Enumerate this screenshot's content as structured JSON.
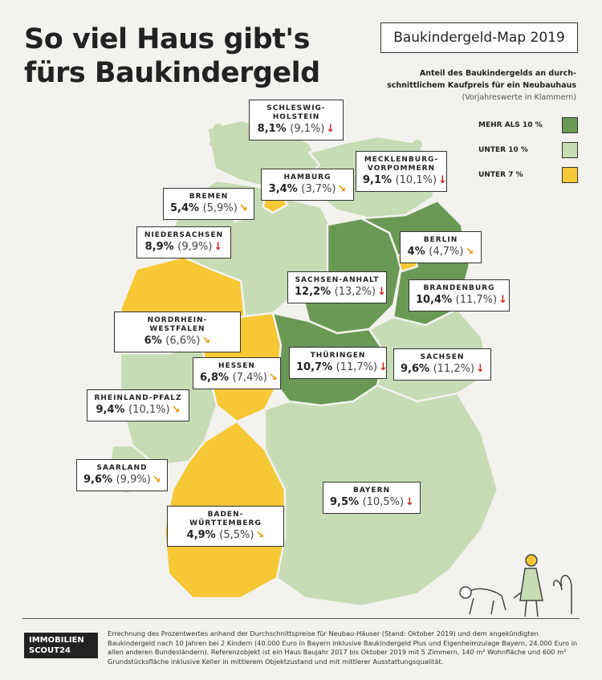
{
  "title": {
    "line1": "So viel Haus gibt's",
    "line2": "fürs Baukindergeld"
  },
  "tag": "Baukindergeld-Map 2019",
  "subtitle": {
    "line1": "Anteil des Baukindergelds an durch-",
    "line2": "schnittlichem Kaufpreis für ein Neubauhaus"
  },
  "note": "(Vorjahreswerte in Klammern)",
  "colors": {
    "dark_green": "#6a9955",
    "light_green": "#c7dcb4",
    "yellow": "#f6c835",
    "background": "#f3f2ef"
  },
  "legend": [
    {
      "label": "MEHR ALS 10 %",
      "color": "#6a9955"
    },
    {
      "label": "UNTER 10 %",
      "color": "#c7dcb4"
    },
    {
      "label": "UNTER 7 %",
      "color": "#f6c835"
    }
  ],
  "states": [
    {
      "name": "SCHLESWIG-HOLSTEIN",
      "l1": "SCHLESWIG-",
      "l2": "HOLSTEIN",
      "value": "8,1%",
      "previous": "(9,1%)",
      "arrow": "↓",
      "trend": "down",
      "category": "light"
    },
    {
      "name": "HAMBURG",
      "l1": "HAMBURG",
      "l2": "",
      "value": "3,4%",
      "previous": "(3,7%)",
      "arrow": "↘",
      "trend": "diag",
      "category": "yellow"
    },
    {
      "name": "MECKLENBURG-VORPOMMERN",
      "l1": "MECKLENBURG-",
      "l2": "VORPOMMERN",
      "value": "9,1%",
      "previous": "(10,1%)",
      "arrow": "↓",
      "trend": "down",
      "category": "light"
    },
    {
      "name": "BREMEN",
      "l1": "BREMEN",
      "l2": "",
      "value": "5,4%",
      "previous": "(5,9%)",
      "arrow": "↘",
      "trend": "diag",
      "category": "yellow"
    },
    {
      "name": "NIEDERSACHSEN",
      "l1": "NIEDERSACHSEN",
      "l2": "",
      "value": "8,9%",
      "previous": "(9,9%)",
      "arrow": "↓",
      "trend": "down",
      "category": "light"
    },
    {
      "name": "BERLIN",
      "l1": "BERLIN",
      "l2": "",
      "value": "4%",
      "previous": "(4,7%)",
      "arrow": "↘",
      "trend": "diag",
      "category": "yellow"
    },
    {
      "name": "SACHSEN-ANHALT",
      "l1": "SACHSEN-ANHALT",
      "l2": "",
      "value": "12,2%",
      "previous": "(13,2%)",
      "arrow": "↓",
      "trend": "down",
      "category": "dark"
    },
    {
      "name": "BRANDENBURG",
      "l1": "BRANDENBURG",
      "l2": "",
      "value": "10,4%",
      "previous": "(11,7%)",
      "arrow": "↓",
      "trend": "down",
      "category": "dark"
    },
    {
      "name": "NORDRHEIN-WESTFALEN",
      "l1": "NORDRHEIN-WESTFALEN",
      "l2": "",
      "value": "6%",
      "previous": "(6,6%)",
      "arrow": "↘",
      "trend": "diag",
      "category": "yellow"
    },
    {
      "name": "HESSEN",
      "l1": "HESSEN",
      "l2": "",
      "value": "6,8%",
      "previous": "(7,4%)",
      "arrow": "↘",
      "trend": "diag",
      "category": "yellow"
    },
    {
      "name": "THÜRINGEN",
      "l1": "THÜRINGEN",
      "l2": "",
      "value": "10,7%",
      "previous": "(11,7%)",
      "arrow": "↓",
      "trend": "down",
      "category": "dark"
    },
    {
      "name": "SACHSEN",
      "l1": "SACHSEN",
      "l2": "",
      "value": "9,6%",
      "previous": "(11,2%)",
      "arrow": "↓",
      "trend": "down",
      "category": "light"
    },
    {
      "name": "RHEINLAND-PFALZ",
      "l1": "RHEINLAND-PFALZ",
      "l2": "",
      "value": "9,4%",
      "previous": "(10,1%)",
      "arrow": "↘",
      "trend": "diag",
      "category": "light"
    },
    {
      "name": "SAARLAND",
      "l1": "SAARLAND",
      "l2": "",
      "value": "9,6%",
      "previous": "(9,9%)",
      "arrow": "↘",
      "trend": "diag",
      "category": "light"
    },
    {
      "name": "BAYERN",
      "l1": "BAYERN",
      "l2": "",
      "value": "9,5%",
      "previous": "(10,5%)",
      "arrow": "↓",
      "trend": "down",
      "category": "light"
    },
    {
      "name": "BADEN-WÜRTTEMBERG",
      "l1": "BADEN-WÜRTTEMBERG",
      "l2": "",
      "value": "4,9%",
      "previous": "(5,5%)",
      "arrow": "↘",
      "trend": "diag",
      "category": "yellow"
    }
  ],
  "logo": {
    "line1": "IMMOBILIEN",
    "line2": "SCOUT24"
  },
  "footnote": "Errechnung des Prozentwertes anhand der Durchschnittspreise für Neubau-Häuser (Stand: Oktober 2019) und dem angekündigten Baukindergeld nach 10 Jahren bei 2 Kindern (40.000 Euro in Bayern inklusive Baukindergeld Plus und Eigenheimzulage Bayern, 24.000 Euro in allen anderen Bundesländern). Referenzobjekt ist ein Haus Baujahr 2017 bis Oktober 2019 mit 5 Zimmern, 140 m² Wohnfläche und 600 m² Grundstücksfläche inklusive Keller in mittlerem Objektzustand und mit mittlerer Ausstattungsqualität."
}
